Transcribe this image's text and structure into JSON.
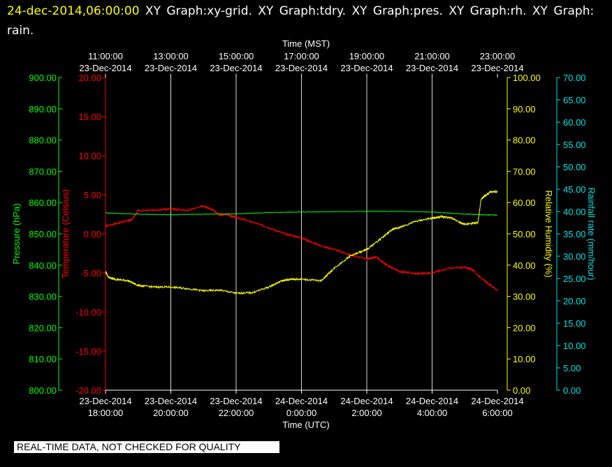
{
  "header": {
    "timestamp": "24-dec-2014,06:00:00",
    "graphs": "XY Graph:xy-grid.  XY Graph:tdry.  XY Graph:pres.  XY Graph:rh.  XY Graph: rain."
  },
  "banner": "REAL-TIME DATA, NOT CHECKED FOR QUALITY",
  "colors": {
    "pressure": "#00ff00",
    "temperature": "#ff0000",
    "humidity": "#ffff00",
    "rain": "#00e5e5",
    "grid": "#ffffff"
  },
  "chart_data": {
    "type": "line",
    "top_axis": {
      "title": "Time (MST)",
      "ticks": [
        {
          "time": "11:00:00",
          "date": "23-Dec-2014"
        },
        {
          "time": "13:00:00",
          "date": "23-Dec-2014"
        },
        {
          "time": "15:00:00",
          "date": "23-Dec-2014"
        },
        {
          "time": "17:00:00",
          "date": "23-Dec-2014"
        },
        {
          "time": "19:00:00",
          "date": "23-Dec-2014"
        },
        {
          "time": "21:00:00",
          "date": "23-Dec-2014"
        },
        {
          "time": "23:00:00",
          "date": "23-Dec-2014"
        }
      ]
    },
    "bottom_axis": {
      "title": "Time (UTC)",
      "ticks": [
        {
          "date": "23-Dec-2014",
          "time": "18:00:00"
        },
        {
          "date": "23-Dec-2014",
          "time": "20:00:00"
        },
        {
          "date": "23-Dec-2014",
          "time": "22:00:00"
        },
        {
          "date": "24-Dec-2014",
          "time": "0:00:00"
        },
        {
          "date": "24-Dec-2014",
          "time": "2:00:00"
        },
        {
          "date": "24-Dec-2014",
          "time": "4:00:00"
        },
        {
          "date": "24-Dec-2014",
          "time": "6:00:00"
        }
      ],
      "range_hours_utc": [
        18,
        30
      ]
    },
    "axes": {
      "pressure": {
        "label": "Pressure (hPa)",
        "range": [
          800,
          900
        ],
        "ticks": [
          "900.00",
          "890.00",
          "880.00",
          "870.00",
          "860.00",
          "850.00",
          "840.00",
          "830.00",
          "820.00",
          "810.00",
          "800.00"
        ]
      },
      "temperature": {
        "label": "Temperature (Celsius)",
        "range": [
          -20,
          20
        ],
        "ticks": [
          "20.00",
          "15.00",
          "10.00",
          "5.00",
          "0.00",
          "-5.00",
          "-10.00",
          "-15.00",
          "-20.00"
        ]
      },
      "humidity": {
        "label": "Relative Humidity (%)",
        "range": [
          0,
          100
        ],
        "ticks": [
          "100.00",
          "90.00",
          "80.00",
          "70.00",
          "60.00",
          "50.00",
          "40.00",
          "30.00",
          "20.00",
          "10.00",
          "0.00"
        ]
      },
      "rain": {
        "label": "Rainfall rate (mm/hour)",
        "range": [
          0,
          70
        ],
        "ticks": [
          "70.00",
          "65.00",
          "60.00",
          "55.00",
          "50.00",
          "45.00",
          "40.00",
          "35.00",
          "30.00",
          "25.00",
          "20.00",
          "15.00",
          "10.00",
          "5.00",
          "0.00"
        ]
      }
    },
    "grid": "vertical",
    "series": [
      {
        "key": "temperature",
        "x": [
          18,
          18.5,
          18.8,
          19,
          19.5,
          20,
          20.5,
          21,
          21.3,
          21.5,
          21.7,
          22,
          22.5,
          23,
          23.5,
          24,
          24.5,
          25,
          25.5,
          26,
          26.3,
          26.6,
          27,
          27.5,
          28,
          28.5,
          29,
          29.2,
          29.6,
          30
        ],
        "values": [
          1.0,
          1.5,
          1.8,
          3.0,
          3.0,
          3.2,
          3.0,
          3.6,
          3.0,
          2.4,
          2.5,
          2.1,
          1.5,
          0.8,
          0.0,
          -0.5,
          -1.4,
          -2.0,
          -2.7,
          -3.2,
          -3.0,
          -4.0,
          -4.8,
          -5.1,
          -5.0,
          -4.4,
          -4.3,
          -4.5,
          -6.0,
          -7.2
        ]
      },
      {
        "key": "pressure",
        "x": [
          18,
          19,
          20,
          21,
          22,
          23,
          24,
          25,
          26,
          27,
          28,
          29,
          29.5,
          30
        ],
        "values": [
          856.7,
          856.3,
          856.1,
          856.3,
          856.4,
          856.8,
          857.0,
          857.1,
          857.2,
          857.2,
          857.0,
          856.3,
          856.1,
          856.0
        ]
      },
      {
        "key": "humidity",
        "x": [
          18,
          18.1,
          18.3,
          18.7,
          19,
          19.5,
          20,
          20.5,
          21,
          21.5,
          22,
          22.5,
          23,
          23.4,
          23.7,
          24,
          24.6,
          25,
          25.5,
          26,
          26.5,
          26.8,
          27,
          27.5,
          28,
          28.3,
          28.6,
          29,
          29.4,
          29.5,
          29.6,
          29.8,
          30
        ],
        "values": [
          38,
          36,
          35.5,
          35,
          33.5,
          33,
          33,
          32.5,
          31.8,
          32,
          31,
          31.2,
          33,
          35,
          35.5,
          35.5,
          35,
          39,
          43,
          45,
          49,
          51.5,
          52,
          54,
          55,
          55.5,
          55,
          53,
          53.5,
          61,
          62,
          63.5,
          63.5
        ]
      }
    ]
  }
}
